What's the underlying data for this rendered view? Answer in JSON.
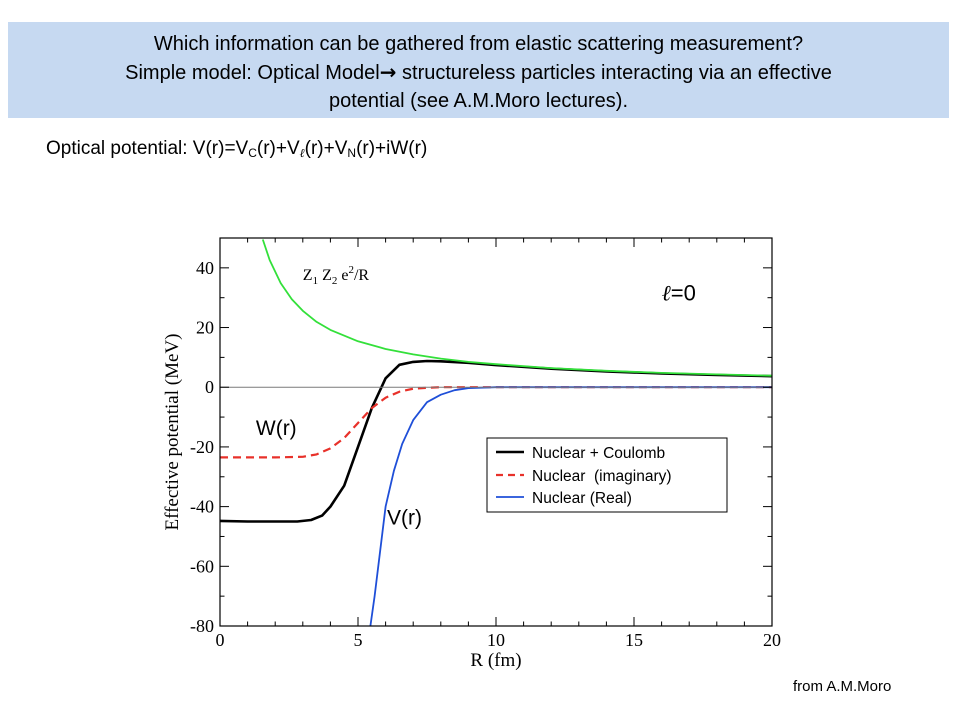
{
  "header": {
    "line1": "Which information can be gathered from elastic scattering measurement?",
    "line2_a": "Simple model: Optical Model",
    "line2_arrow": "→",
    "line2_b": " structureless particles interacting via an effective",
    "line3": "potential (see A.M.Moro lectures)."
  },
  "formula": {
    "prefix": "Optical potential: V(r)=V",
    "sub_c": "C",
    "part2": "(r)+V",
    "sub_l": "ℓ",
    "part3": "(r)+V",
    "sub_n": "N",
    "part4": "(r)+iW(r)"
  },
  "credit": "from A.M.Moro",
  "chart_data": {
    "type": "line",
    "xlabel": "R (fm)",
    "ylabel": "Effective potential  (MeV)",
    "xlim": [
      0,
      20
    ],
    "ylim": [
      -80,
      50
    ],
    "xticks": [
      0,
      5,
      10,
      15,
      20
    ],
    "yticks": [
      -80,
      -60,
      -40,
      -20,
      0,
      20,
      40
    ],
    "grid": false,
    "legend_position": "lower-right",
    "series": [
      {
        "name": "Nuclear + Coulomb",
        "color": "#000000",
        "dash": "solid",
        "x": [
          0,
          1,
          2,
          2.8,
          3.3,
          3.7,
          4.0,
          4.5,
          5.0,
          5.5,
          6.0,
          6.5,
          7.0,
          7.5,
          8,
          9,
          10,
          12,
          14,
          16,
          18,
          20
        ],
        "y": [
          -44.8,
          -45,
          -45,
          -45,
          -44.5,
          -43,
          -40,
          -33,
          -20,
          -7,
          3,
          7.5,
          8.5,
          8.8,
          8.7,
          8.2,
          7.4,
          6.2,
          5.3,
          4.6,
          4.1,
          3.7
        ]
      },
      {
        "name": "Nuclear  (imaginary)",
        "color": "#e8312a",
        "dash": "dashed",
        "x": [
          0,
          1,
          2,
          3.0,
          3.5,
          4.0,
          4.5,
          5.0,
          5.5,
          6.0,
          6.5,
          7.0,
          7.5,
          8,
          9,
          10,
          12,
          15,
          20
        ],
        "y": [
          -23.5,
          -23.5,
          -23.5,
          -23.3,
          -22.5,
          -20.5,
          -17,
          -12,
          -7,
          -3.5,
          -1.5,
          -0.5,
          -0.2,
          0,
          0,
          0,
          0,
          0,
          0
        ]
      },
      {
        "name": "Nuclear (Real)",
        "color": "#1f4fd8",
        "dash": "solid",
        "x": [
          5.45,
          5.6,
          5.8,
          6.0,
          6.3,
          6.6,
          7.0,
          7.5,
          8.0,
          8.5,
          9,
          10,
          12,
          15,
          20
        ],
        "y": [
          -80,
          -70,
          -55,
          -40,
          -28,
          -19,
          -11,
          -5,
          -2.5,
          -1,
          -0.3,
          0,
          0,
          0,
          0
        ]
      },
      {
        "name": "",
        "color": "#33e03a",
        "dash": "solid",
        "x": [
          1.55,
          1.8,
          2.2,
          2.6,
          3,
          3.5,
          4,
          5,
          6,
          7,
          8,
          9,
          10,
          12,
          14,
          16,
          18,
          20
        ],
        "y": [
          49.5,
          42.6,
          34.9,
          29.5,
          25.6,
          21.9,
          19.2,
          15.4,
          12.8,
          11.0,
          9.6,
          8.5,
          7.7,
          6.4,
          5.5,
          4.8,
          4.3,
          3.85
        ]
      },
      {
        "name": "",
        "color": "#7a7a7a",
        "dash": "solid",
        "x": [
          0,
          20
        ],
        "y": [
          0,
          0
        ]
      }
    ],
    "annotations": [
      {
        "text": "Z1 Z2 e2/R",
        "x": 3.0,
        "y": 36
      },
      {
        "text": "ℓ=0",
        "x": 16,
        "y": 29
      },
      {
        "text": "W(r)",
        "x": 1.3,
        "y": -16
      },
      {
        "text": "V(r)",
        "x": 6.05,
        "y": -46
      }
    ]
  }
}
